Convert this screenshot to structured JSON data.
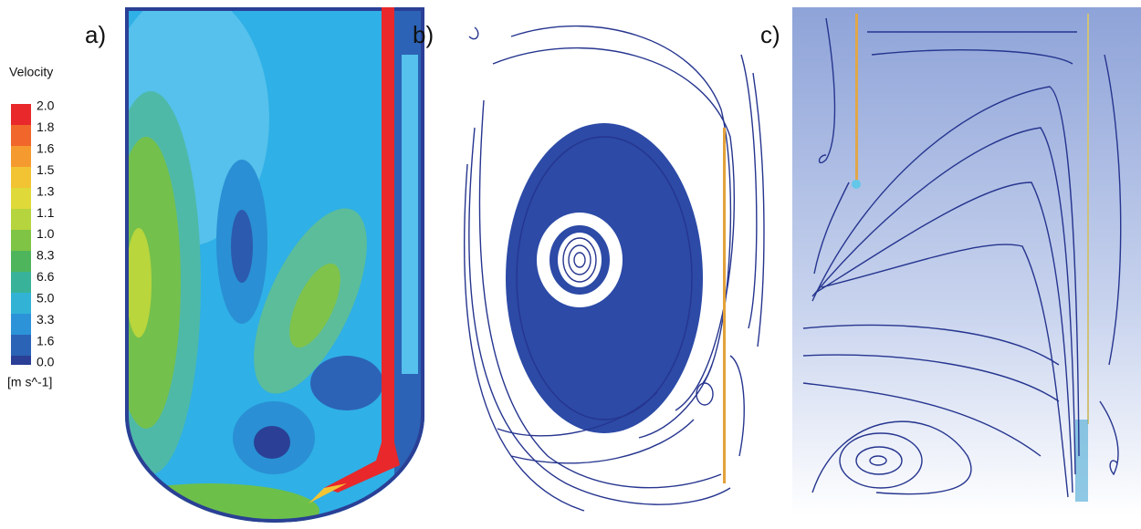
{
  "panel_labels": [
    "a)",
    "b)",
    "c)"
  ],
  "legend": {
    "title": "Velocity",
    "ticks": [
      "2.0",
      "1.8",
      "1.6",
      "1.5",
      "1.3",
      "1.1",
      "1.0",
      "8.3",
      "6.6",
      "5.0",
      "3.3",
      "1.6",
      "0.0"
    ],
    "unit": "[m s^-1]"
  }
}
